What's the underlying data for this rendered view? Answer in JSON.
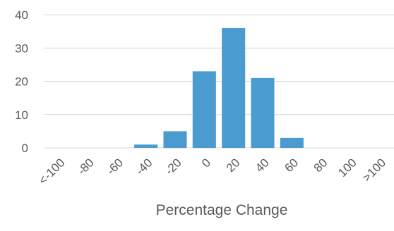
{
  "chart_data": {
    "type": "bar",
    "title": "",
    "xlabel": "Percentage Change",
    "ylabel": "",
    "categories": [
      "<-100",
      "-80",
      "-60",
      "-40",
      "-20",
      "0",
      "20",
      "40",
      "60",
      "80",
      "100",
      ">100"
    ],
    "values": [
      0,
      0,
      0,
      1,
      5,
      23,
      36,
      21,
      3,
      0,
      0,
      0
    ],
    "ylim": [
      0,
      40
    ],
    "yticks": [
      0,
      10,
      20,
      30,
      40
    ],
    "grid": true,
    "legend": "none",
    "colors": {
      "bar": "#4a9bd0",
      "grid": "#d9d9d9",
      "text": "#595959"
    }
  }
}
